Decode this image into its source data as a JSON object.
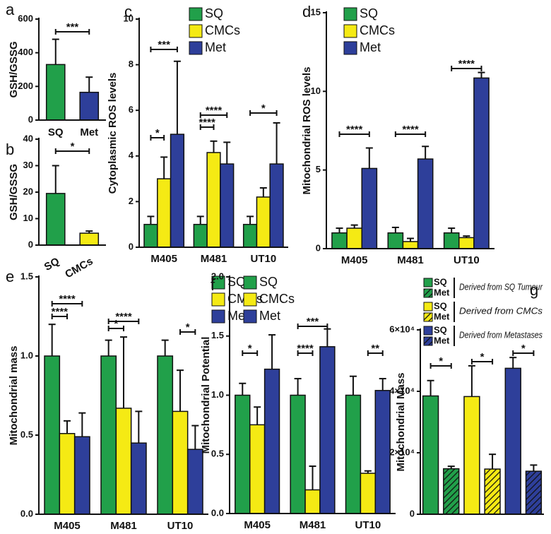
{
  "chart_data": [
    {
      "type": "bar",
      "letter": "a",
      "ylabel": "GSH/GSSG",
      "categories": [
        "SQ",
        "Met"
      ],
      "values": [
        330,
        165
      ],
      "errors": [
        150,
        90
      ],
      "colors": [
        "#21a04a",
        "#2e3f9a"
      ],
      "ylim": [
        0,
        600
      ],
      "yticks": [
        0,
        200,
        400,
        600
      ],
      "annotations": [
        {
          "text": "***"
        }
      ]
    },
    {
      "type": "bar",
      "letter": "b",
      "ylabel": "GSH/GSSG",
      "categories": [
        "SQ",
        "CMCs"
      ],
      "values": [
        19.5,
        4.5
      ],
      "errors": [
        10.5,
        0.8
      ],
      "colors": [
        "#21a04a",
        "#f5ea14"
      ],
      "ylim": [
        0,
        40
      ],
      "yticks": [
        0,
        10,
        20,
        30,
        40
      ],
      "annotations": [
        {
          "text": "*"
        }
      ]
    },
    {
      "type": "grouped-bar",
      "letter": "c",
      "ylabel": "Cytoplasmic ROS levels",
      "categories": [
        "M405",
        "M481",
        "UT10"
      ],
      "series": [
        {
          "name": "SQ",
          "color": "#21a04a",
          "values": [
            1,
            1,
            1
          ],
          "errors": [
            0.35,
            0.35,
            0.35
          ]
        },
        {
          "name": "CMCs",
          "color": "#f5ea14",
          "values": [
            3,
            4.15,
            2.2
          ],
          "errors": [
            0.95,
            0.5,
            0.4
          ]
        },
        {
          "name": "Met",
          "color": "#2e3f9a",
          "values": [
            4.95,
            3.65,
            3.65
          ],
          "errors": [
            3.2,
            0.95,
            1.8
          ]
        }
      ],
      "ylim": [
        0,
        10
      ],
      "yticks": [
        0,
        2,
        4,
        6,
        8,
        10
      ],
      "annotations": [
        {
          "text": "*"
        },
        {
          "text": "***"
        },
        {
          "text": "****"
        },
        {
          "text": "****"
        },
        {
          "text": "*"
        }
      ]
    },
    {
      "type": "grouped-bar",
      "letter": "d",
      "ylabel": "Mitochondrial ROS levels",
      "categories": [
        "M405",
        "M481",
        "UT10"
      ],
      "series": [
        {
          "name": "SQ",
          "color": "#21a04a",
          "values": [
            1,
            1,
            1
          ],
          "errors": [
            0.3,
            0.35,
            0.3
          ]
        },
        {
          "name": "CMCs",
          "color": "#f5ea14",
          "values": [
            1.3,
            0.45,
            0.7
          ],
          "errors": [
            0.2,
            0.2,
            0.1
          ]
        },
        {
          "name": "Met",
          "color": "#2e3f9a",
          "values": [
            5.1,
            5.7,
            10.85
          ],
          "errors": [
            1.3,
            0.8,
            0.35
          ]
        }
      ],
      "ylim": [
        0,
        15
      ],
      "yticks": [
        0,
        5,
        10,
        15
      ],
      "annotations": [
        {
          "text": "****"
        },
        {
          "text": "****"
        },
        {
          "text": "****"
        }
      ]
    },
    {
      "type": "grouped-bar",
      "letter": "e",
      "ylabel": "Mitochondrial mass",
      "categories": [
        "M405",
        "M481",
        "UT10"
      ],
      "series": [
        {
          "name": "SQ",
          "color": "#21a04a",
          "values": [
            1,
            1,
            1
          ],
          "errors": [
            0.2,
            0.1,
            0.1
          ]
        },
        {
          "name": "CMCs",
          "color": "#f5ea14",
          "values": [
            0.51,
            0.67,
            0.65
          ],
          "errors": [
            0.08,
            0.45,
            0.26
          ]
        },
        {
          "name": "Met",
          "color": "#2e3f9a",
          "values": [
            0.49,
            0.45,
            0.41
          ],
          "errors": [
            0.15,
            0.2,
            0.15
          ]
        }
      ],
      "ylim": [
        0,
        1.5
      ],
      "yticks": [
        {
          "value": 0,
          "label": "0.0"
        },
        {
          "value": 0.5,
          "label": "0.5"
        },
        {
          "value": 1,
          "label": "1.0"
        },
        {
          "value": 1.5,
          "label": "1.5"
        }
      ],
      "annotations": [
        {
          "text": "****"
        },
        {
          "text": "****"
        },
        {
          "text": "*"
        },
        {
          "text": "****"
        },
        {
          "text": "*"
        }
      ]
    },
    {
      "type": "grouped-bar",
      "letter": "f",
      "ylabel": "Mitochondrial Potential",
      "categories": [
        "M405",
        "M481",
        "UT10"
      ],
      "series": [
        {
          "name": "SQ",
          "color": "#21a04a",
          "values": [
            1,
            1,
            1
          ],
          "errors": [
            0.1,
            0.14,
            0.16
          ]
        },
        {
          "name": "CMCs",
          "color": "#f5ea14",
          "values": [
            0.75,
            0.2,
            0.34
          ],
          "errors": [
            0.15,
            0.2,
            0.02
          ]
        },
        {
          "name": "Met",
          "color": "#2e3f9a",
          "values": [
            1.22,
            1.41,
            1.04
          ],
          "errors": [
            0.29,
            0.15,
            0.1
          ]
        }
      ],
      "ylim": [
        0,
        2
      ],
      "yticks": [
        {
          "value": 0,
          "label": "0.0"
        },
        {
          "value": 0.5,
          "label": "0.5"
        },
        {
          "value": 1,
          "label": "1.0"
        },
        {
          "value": 1.5,
          "label": "1.5"
        },
        {
          "value": 2,
          "label": "2.0"
        }
      ],
      "annotations": [
        {
          "text": "*"
        },
        {
          "text": "****"
        },
        {
          "text": "***"
        },
        {
          "text": "**"
        }
      ]
    },
    {
      "type": "bar",
      "letter": "g",
      "ylabel": "Mitochondrial Mass",
      "categories": [
        null,
        null,
        null,
        null,
        null,
        null
      ],
      "values": [
        38500,
        14800,
        38300,
        14700,
        47500,
        14000
      ],
      "errors": [
        5000,
        800,
        10000,
        4800,
        3500,
        2000
      ],
      "colors": [
        "#21a04a",
        "#21a04a",
        "#f5ea14",
        "#f5ea14",
        "#2e3f9a",
        "#2e3f9a"
      ],
      "hatched": [
        false,
        true,
        false,
        true,
        false,
        true
      ],
      "ylim": [
        0,
        60000
      ],
      "yticks": [
        0,
        {
          "value": 20000,
          "label": "2×10⁴"
        },
        {
          "value": 40000,
          "label": "4×10⁴"
        },
        {
          "value": 60000,
          "label": "6×10⁴"
        }
      ],
      "annotations": [
        {
          "text": "*"
        },
        {
          "text": "*"
        },
        {
          "text": "*"
        }
      ],
      "legend": [
        {
          "names": [
            "SQ",
            "Met"
          ],
          "note": "Derived from SQ Tumour"
        },
        {
          "names": [
            "SQ",
            "Met"
          ],
          "note": "Derived from CMCs"
        },
        {
          "names": [
            "SQ",
            "Met"
          ],
          "note": "Derived from Metastases"
        }
      ]
    }
  ]
}
